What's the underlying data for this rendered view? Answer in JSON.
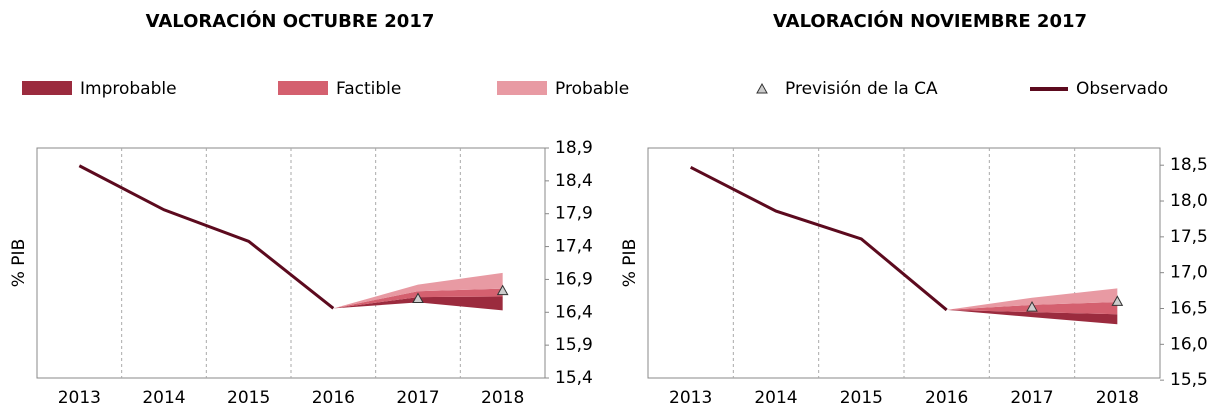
{
  "chart_data": [
    {
      "type": "fan",
      "title": "VALORACIÓN OCTUBRE 2017",
      "y_label": "% PIB",
      "categories": [
        "2013",
        "2014",
        "2015",
        "2016",
        "2017",
        "2018"
      ],
      "ylim": [
        15.4,
        18.9
      ],
      "yticks": [
        {
          "value": 15.4,
          "label": "15,4"
        },
        {
          "value": 15.9,
          "label": "15,9"
        },
        {
          "value": 16.4,
          "label": "16,4"
        },
        {
          "value": 16.9,
          "label": "16,9"
        },
        {
          "value": 17.4,
          "label": "17,4"
        },
        {
          "value": 17.9,
          "label": "17,9"
        },
        {
          "value": 18.4,
          "label": "18,4"
        },
        {
          "value": 18.9,
          "label": "18,9"
        }
      ],
      "bands": [
        {
          "name": "Improbable",
          "color": "#9b2b3e",
          "lower": [
            null,
            null,
            null,
            16.46,
            16.55,
            16.43
          ],
          "upper": [
            null,
            null,
            null,
            16.46,
            16.63,
            16.64
          ]
        },
        {
          "name": "Factible",
          "color": "#d4606f",
          "lower": [
            null,
            null,
            null,
            16.46,
            16.63,
            16.64
          ],
          "upper": [
            null,
            null,
            null,
            16.46,
            16.72,
            16.76
          ]
        },
        {
          "name": "Probable",
          "color": "#e89aa3",
          "lower": [
            null,
            null,
            null,
            16.46,
            16.72,
            16.76
          ],
          "upper": [
            null,
            null,
            null,
            16.46,
            16.82,
            17.0
          ]
        }
      ],
      "series": [
        {
          "name": "Previsión de la CA",
          "marker": "triangle",
          "color": "#cccccc",
          "values": [
            null,
            null,
            null,
            null,
            16.61,
            16.73
          ]
        },
        {
          "name": "Observado",
          "color": "#5c0a1e",
          "values": [
            18.63,
            17.96,
            17.48,
            16.46,
            null,
            null
          ]
        }
      ]
    },
    {
      "type": "fan",
      "title": "VALORACIÓN NOVIEMBRE 2017",
      "y_label": "% PIB",
      "categories": [
        "2013",
        "2014",
        "2015",
        "2016",
        "2017",
        "2018"
      ],
      "ylim": [
        15.53,
        18.74
      ],
      "yticks": [
        {
          "value": 15.5,
          "label": "15,5"
        },
        {
          "value": 16.0,
          "label": "16,0"
        },
        {
          "value": 16.5,
          "label": "16,5"
        },
        {
          "value": 17.0,
          "label": "17,0"
        },
        {
          "value": 17.5,
          "label": "17,5"
        },
        {
          "value": 18.0,
          "label": "18,0"
        },
        {
          "value": 18.5,
          "label": "18,5"
        }
      ],
      "bands": [
        {
          "name": "Improbable",
          "color": "#9b2b3e",
          "lower": [
            null,
            null,
            null,
            16.48,
            16.38,
            16.28
          ],
          "upper": [
            null,
            null,
            null,
            16.48,
            16.45,
            16.42
          ]
        },
        {
          "name": "Factible",
          "color": "#d4606f",
          "lower": [
            null,
            null,
            null,
            16.48,
            16.45,
            16.42
          ],
          "upper": [
            null,
            null,
            null,
            16.48,
            16.55,
            16.59
          ]
        },
        {
          "name": "Probable",
          "color": "#e89aa3",
          "lower": [
            null,
            null,
            null,
            16.48,
            16.55,
            16.59
          ],
          "upper": [
            null,
            null,
            null,
            16.48,
            16.65,
            16.78
          ]
        }
      ],
      "series": [
        {
          "name": "Previsión de la CA",
          "marker": "triangle",
          "color": "#cccccc",
          "values": [
            null,
            null,
            null,
            null,
            16.52,
            16.6
          ]
        },
        {
          "name": "Observado",
          "color": "#5c0a1e",
          "values": [
            18.47,
            17.86,
            17.47,
            16.48,
            null,
            null
          ]
        }
      ]
    }
  ]
}
